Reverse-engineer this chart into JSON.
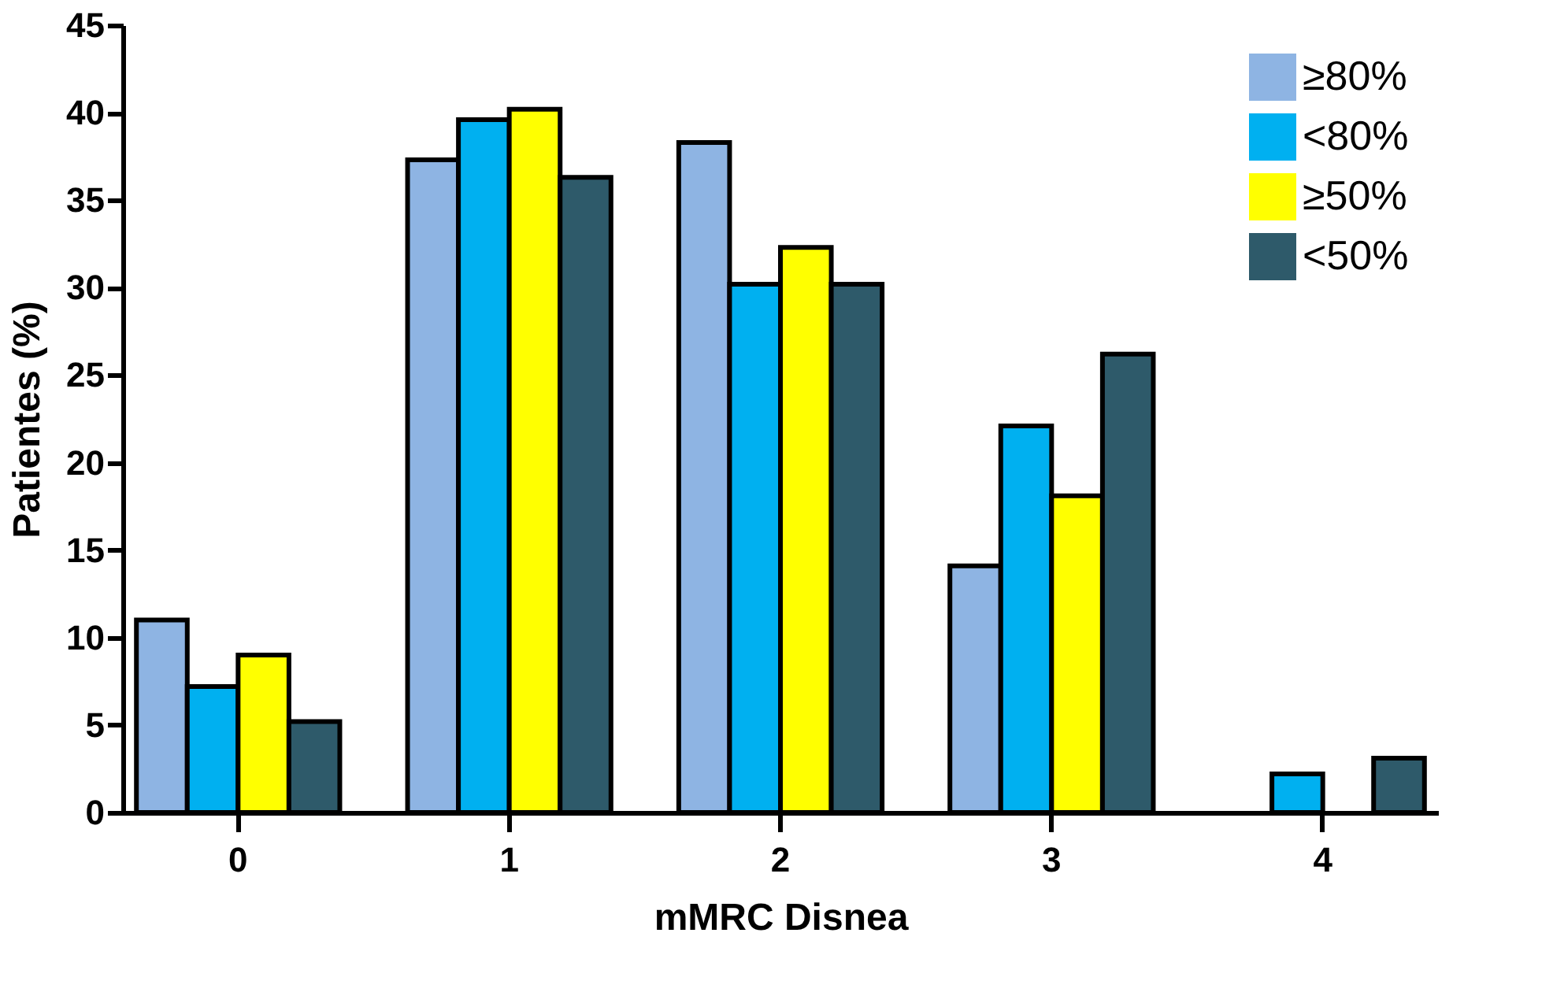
{
  "chart_data": {
    "type": "bar",
    "xlabel": "mMRC Disnea",
    "ylabel": "Patientes (%)",
    "categories": [
      "0",
      "1",
      "2",
      "3",
      "4"
    ],
    "series": [
      {
        "name": "≥80%",
        "color": "#8eb4e3",
        "values": [
          11,
          37.3,
          38.3,
          14.1,
          null
        ]
      },
      {
        "name": "<80%",
        "color": "#00b0f0",
        "values": [
          7.2,
          39.6,
          30.2,
          22.1,
          2.2
        ]
      },
      {
        "name": "≥50%",
        "color": "#ffff00",
        "values": [
          9,
          40.2,
          32.3,
          18.1,
          null
        ]
      },
      {
        "name": "<50%",
        "color": "#2e5a6a",
        "values": [
          5.2,
          36.3,
          30.2,
          26.2,
          3.1
        ]
      }
    ],
    "ylim": [
      0,
      45
    ],
    "yticks": [
      0,
      5,
      10,
      15,
      20,
      25,
      30,
      35,
      40,
      45
    ],
    "grid": false,
    "legend": "top right"
  }
}
